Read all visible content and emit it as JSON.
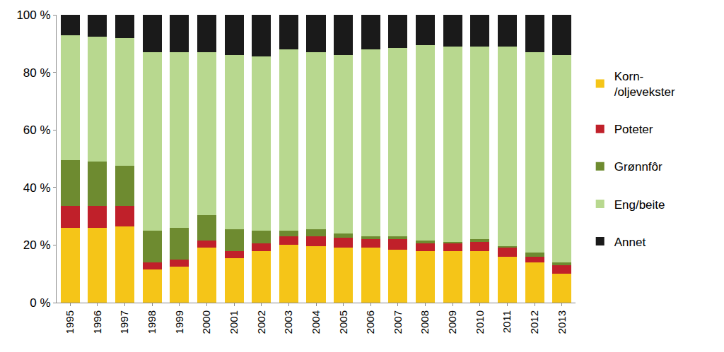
{
  "chart_data": {
    "type": "bar",
    "stacked": true,
    "legend": "right",
    "grid": false,
    "categories": [
      "1995",
      "1996",
      "1997",
      "1998",
      "1999",
      "2000",
      "2001",
      "2002",
      "2003",
      "2004",
      "2005",
      "2006",
      "2007",
      "2008",
      "2009",
      "2010",
      "2011",
      "2012",
      "2013"
    ],
    "ylim": [
      0,
      100
    ],
    "yticks": [
      {
        "value": 0,
        "label": "0 %"
      },
      {
        "value": 20,
        "label": "20 %"
      },
      {
        "value": 40,
        "label": "40 %"
      },
      {
        "value": 60,
        "label": "60 %"
      },
      {
        "value": 80,
        "label": "80 %"
      },
      {
        "value": 100,
        "label": "100 %"
      }
    ],
    "series": [
      {
        "name": "Korn-\n/oljevekster",
        "color": "#f5c518",
        "values": [
          26,
          26,
          26.5,
          11.5,
          12.5,
          19,
          15.5,
          18,
          20,
          19.5,
          19,
          19,
          18.5,
          18,
          18,
          18,
          16,
          14,
          10
        ]
      },
      {
        "name": "Poteter",
        "color": "#c0202a",
        "values": [
          7.5,
          7.5,
          7,
          2.5,
          2.5,
          2.5,
          2.5,
          2.5,
          3,
          3.5,
          3.5,
          3,
          3.5,
          2.5,
          2.5,
          3,
          3,
          2,
          3
        ]
      },
      {
        "name": "Grønnfôr",
        "color": "#6e8b30",
        "values": [
          16,
          15.5,
          14,
          11,
          11,
          9,
          7.5,
          4.5,
          2,
          2.5,
          1.5,
          1,
          1,
          1,
          0.5,
          1,
          0.5,
          1.5,
          1
        ]
      },
      {
        "name": "Eng/beite",
        "color": "#b8d88f",
        "values": [
          43.5,
          43.5,
          44.5,
          62,
          61,
          56.5,
          60.5,
          60.5,
          63,
          61.5,
          62,
          65,
          65.5,
          68,
          68,
          67,
          69.5,
          69.5,
          72
        ]
      },
      {
        "name": "Annet",
        "color": "#1a1a1a",
        "values": [
          7,
          7.5,
          8,
          13,
          13,
          13,
          14,
          14.5,
          12,
          13,
          14,
          12,
          11.5,
          10.5,
          11,
          11,
          11,
          13,
          14
        ]
      }
    ]
  }
}
